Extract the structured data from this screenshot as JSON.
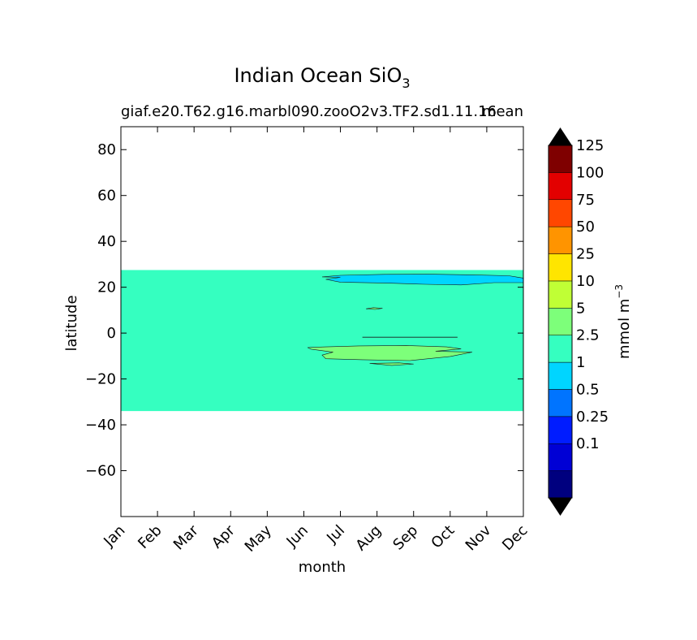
{
  "chart_data": {
    "type": "contourf",
    "title": "Indian Ocean SiO",
    "title_subscript": "3",
    "subtitle_left": "giaf.e20.T62.g16.marbl090.zooO2v3.TF2.sd1.11.16",
    "subtitle_right": "mean",
    "xlabel": "month",
    "ylabel": "latitude",
    "xlim": [
      0,
      11
    ],
    "ylim": [
      -80,
      90
    ],
    "x_ticks": [
      "Jan",
      "Feb",
      "Mar",
      "Apr",
      "May",
      "Jun",
      "Jul",
      "Aug",
      "Sep",
      "Oct",
      "Nov",
      "Dec"
    ],
    "y_ticks": [
      80,
      60,
      40,
      20,
      0,
      -20,
      -40,
      -60
    ],
    "y_tick_labels": [
      "80",
      "60",
      "40",
      "20",
      "0",
      "−20",
      "−40",
      "−60"
    ],
    "background_field": {
      "level": "2.5–5",
      "lat_range": [
        -34,
        27.5
      ],
      "month_range": [
        0,
        11
      ],
      "color": "#35ffc0"
    },
    "features": [
      {
        "name": "north-band",
        "level": "1–2.5",
        "color": "#00d5ff",
        "polygon": [
          [
            5.5,
            24.5
          ],
          [
            6.0,
            25.2
          ],
          [
            7.2,
            25.6
          ],
          [
            8.4,
            25.7
          ],
          [
            9.6,
            25.4
          ],
          [
            10.6,
            25.0
          ],
          [
            11.0,
            24.0
          ],
          [
            11.0,
            22.0
          ],
          [
            10.2,
            22.0
          ],
          [
            9.3,
            21.0
          ],
          [
            8.3,
            21.3
          ],
          [
            7.3,
            21.8
          ],
          [
            6.0,
            22.2
          ],
          [
            5.6,
            23.4
          ],
          [
            6.0,
            24.3
          ],
          [
            5.5,
            24.5
          ]
        ]
      },
      {
        "name": "small-patch",
        "level": "5–10",
        "color": "#7dff7a",
        "polygon": [
          [
            6.7,
            10.6
          ],
          [
            6.9,
            11.1
          ],
          [
            7.15,
            10.8
          ],
          [
            6.95,
            10.3
          ],
          [
            6.7,
            10.6
          ]
        ]
      },
      {
        "name": "south-patch",
        "level": "5–10",
        "color": "#7dff7a",
        "polygon": [
          [
            5.1,
            -6.3
          ],
          [
            5.6,
            -6.0
          ],
          [
            6.5,
            -5.6
          ],
          [
            7.8,
            -5.4
          ],
          [
            8.9,
            -6.0
          ],
          [
            9.3,
            -6.9
          ],
          [
            8.6,
            -7.9
          ],
          [
            9.6,
            -8.3
          ],
          [
            9.0,
            -10.2
          ],
          [
            7.9,
            -12.0
          ],
          [
            6.6,
            -11.6
          ],
          [
            5.6,
            -11.2
          ],
          [
            5.5,
            -9.6
          ],
          [
            5.8,
            -8.3
          ],
          [
            5.2,
            -7.0
          ],
          [
            5.1,
            -6.3
          ]
        ]
      },
      {
        "name": "south-patch-tail",
        "level": "5–10",
        "color": "#7dff7a",
        "polygon": [
          [
            6.8,
            -13.2
          ],
          [
            7.6,
            -13.0
          ],
          [
            8.0,
            -13.5
          ],
          [
            7.4,
            -14.1
          ],
          [
            6.8,
            -13.2
          ]
        ]
      }
    ],
    "zero_line": {
      "lat": -1.8,
      "month_range": [
        6.6,
        9.2
      ]
    },
    "colorbar": {
      "label": "mmol m",
      "label_superscript": "−3",
      "extend": "both",
      "under_color": "#000000",
      "over_color": "#000000",
      "levels_bottom_to_top": [
        {
          "color": "#00007f"
        },
        {
          "color": "#0000d5",
          "tick_label": "0.1"
        },
        {
          "color": "#001cff",
          "tick_label": "0.25"
        },
        {
          "color": "#0074ff",
          "tick_label": "0.5"
        },
        {
          "color": "#00d5ff",
          "tick_label": "1"
        },
        {
          "color": "#35ffc0",
          "tick_label": "2.5"
        },
        {
          "color": "#7dff7a",
          "tick_label": "5"
        },
        {
          "color": "#c0ff35",
          "tick_label": "10"
        },
        {
          "color": "#ffe500",
          "tick_label": "25"
        },
        {
          "color": "#ff9400",
          "tick_label": "50"
        },
        {
          "color": "#ff4700",
          "tick_label": "75"
        },
        {
          "color": "#e30000",
          "tick_label": "100"
        },
        {
          "color": "#7f0000",
          "tick_label": "125"
        }
      ]
    }
  }
}
